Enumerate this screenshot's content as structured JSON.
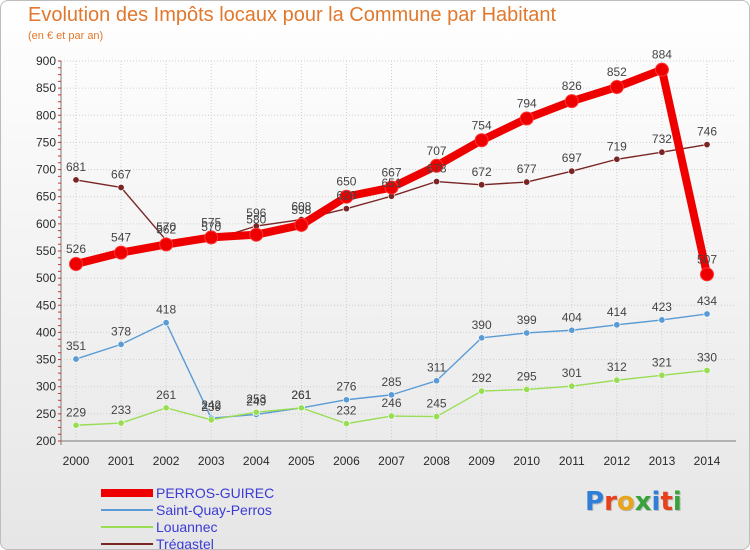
{
  "title": "Evolution des Impôts locaux pour la Commune par Habitant",
  "subtitle": "(en € et par an)",
  "logo": {
    "text": "Proxiti",
    "letter_colors": [
      "#2f7fd8",
      "#e8401c",
      "#e8a41c",
      "#3aa23a",
      "#2f7fd8",
      "#e8401c",
      "#3aa23a"
    ]
  },
  "colors": {
    "grid": "#d0d0d0",
    "axis": "#7a7a7a",
    "tick_text": "#2a2a2a",
    "label_text": "#444444"
  },
  "chart_data": {
    "type": "line",
    "title": "Evolution des Impôts locaux pour la Commune par Habitant",
    "subtitle": "(en € et par an)",
    "xlabel": "",
    "ylabel": "",
    "ylim": [
      200,
      900
    ],
    "yticks": [
      200,
      250,
      300,
      350,
      400,
      450,
      500,
      550,
      600,
      650,
      700,
      750,
      800,
      850,
      900
    ],
    "grid": true,
    "legend_position": "bottom-left",
    "x": [
      "2000",
      "2001",
      "2002",
      "2003",
      "2004",
      "2005",
      "2006",
      "2007",
      "2008",
      "2009",
      "2010",
      "2011",
      "2012",
      "2013",
      "2014"
    ],
    "series": [
      {
        "name": "PERROS-GUIREC",
        "color": "#ee0000",
        "values": [
          526,
          547,
          562,
          575,
          580,
          598,
          650,
          667,
          707,
          754,
          794,
          826,
          852,
          884,
          507
        ],
        "labels": [
          "526",
          "547",
          "562",
          "575",
          "580",
          "598",
          "650",
          "667",
          "707",
          "754",
          "794",
          "826",
          "852",
          "884",
          "507"
        ]
      },
      {
        "name": "Saint-Quay-Perros",
        "color": "#5b9bd5",
        "values": [
          351,
          378,
          418,
          242,
          249,
          261,
          276,
          285,
          311,
          390,
          399,
          404,
          414,
          423,
          434
        ],
        "labels": [
          "351",
          "378",
          "418",
          "242",
          "249",
          "261",
          "276",
          "285",
          "311",
          "390",
          "399",
          "404",
          "414",
          "423",
          "434"
        ]
      },
      {
        "name": "Louannec",
        "color": "#99dd55",
        "values": [
          229,
          233,
          261,
          239,
          253,
          261,
          232,
          246,
          245,
          292,
          295,
          301,
          312,
          321,
          330
        ],
        "labels": [
          "229",
          "233",
          "261",
          "239",
          "253",
          "261",
          "232",
          "246",
          "245",
          "292",
          "295",
          "301",
          "312",
          "321",
          "330"
        ]
      },
      {
        "name": "Trégastel",
        "color": "#7a2525",
        "values": [
          681,
          667,
          570,
          570,
          596,
          608,
          628,
          651,
          678,
          672,
          677,
          697,
          719,
          732,
          746
        ],
        "labels": [
          "681",
          "667",
          "570",
          "570",
          "596",
          "608",
          "628",
          "651",
          "678",
          "672",
          "677",
          "697",
          "719",
          "732",
          "746"
        ]
      }
    ]
  }
}
